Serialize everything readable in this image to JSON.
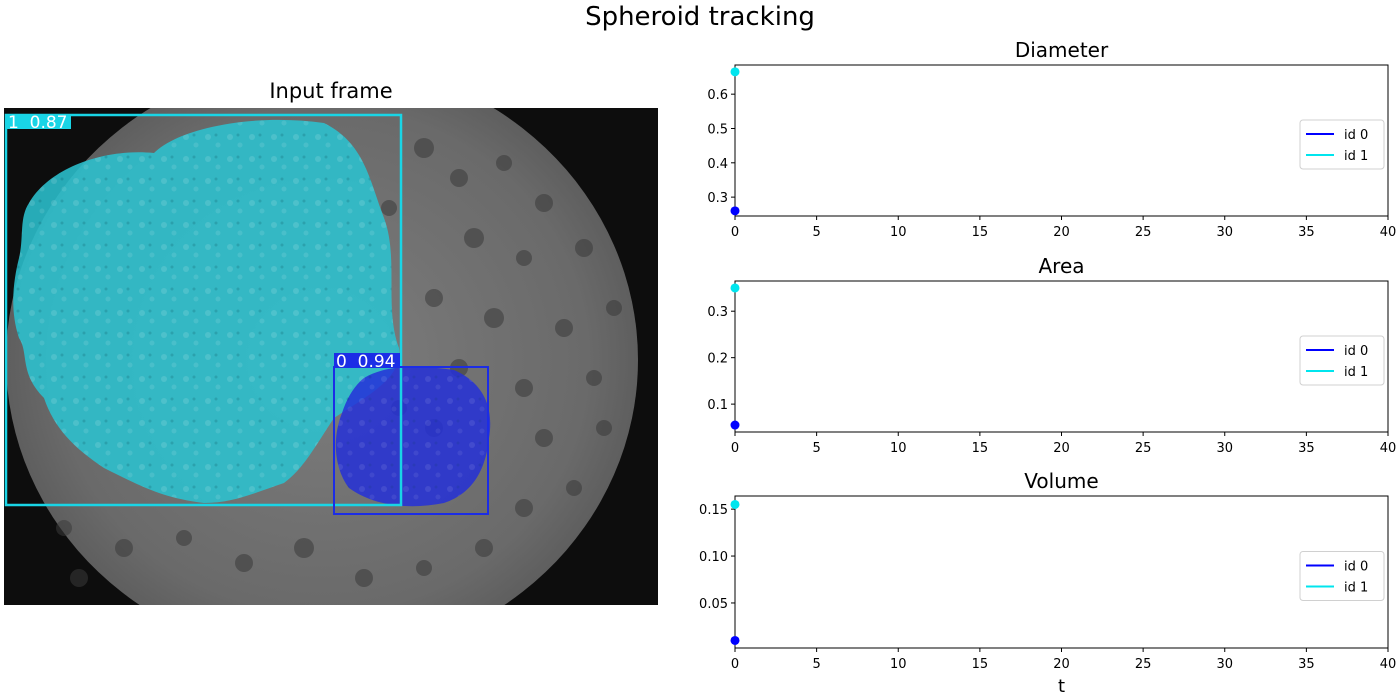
{
  "figure": {
    "title": "Spheroid tracking",
    "frame_title": "Input frame",
    "detections": [
      {
        "id": "1",
        "score": "0.87",
        "label": "1  0.87",
        "color": "#19d5e6"
      },
      {
        "id": "0",
        "score": "0.94",
        "label": "0  0.94",
        "color": "#1c2de6"
      }
    ]
  },
  "colors": {
    "id0": "#0000ff",
    "id1": "#00e5ee",
    "mask1": "#2bc2cf",
    "mask0": "#2430d8"
  },
  "chart_data": [
    {
      "type": "line",
      "title": "Diameter",
      "xlabel": "",
      "ylabel": "",
      "xlim": [
        0,
        40
      ],
      "ylim": [
        0.245,
        0.685
      ],
      "xticks": [
        0,
        5,
        10,
        15,
        20,
        25,
        30,
        35,
        40
      ],
      "yticks": [
        0.3,
        0.4,
        0.5,
        0.6
      ],
      "ytick_labels": [
        "0.3",
        "0.4",
        "0.5",
        "0.6"
      ],
      "legend": "center-right",
      "series": [
        {
          "name": "id 0",
          "x": [
            0
          ],
          "y": [
            0.26
          ],
          "color": "#0000ff"
        },
        {
          "name": "id 1",
          "x": [
            0
          ],
          "y": [
            0.665
          ],
          "color": "#00e5ee"
        }
      ]
    },
    {
      "type": "line",
      "title": "Area",
      "xlabel": "",
      "ylabel": "",
      "xlim": [
        0,
        40
      ],
      "ylim": [
        0.04,
        0.365
      ],
      "xticks": [
        0,
        5,
        10,
        15,
        20,
        25,
        30,
        35,
        40
      ],
      "yticks": [
        0.1,
        0.2,
        0.3
      ],
      "ytick_labels": [
        "0.1",
        "0.2",
        "0.3"
      ],
      "legend": "center-right",
      "series": [
        {
          "name": "id 0",
          "x": [
            0
          ],
          "y": [
            0.055
          ],
          "color": "#0000ff"
        },
        {
          "name": "id 1",
          "x": [
            0
          ],
          "y": [
            0.35
          ],
          "color": "#00e5ee"
        }
      ]
    },
    {
      "type": "line",
      "title": "Volume",
      "xlabel": "t",
      "ylabel": "",
      "xlim": [
        0,
        40
      ],
      "ylim": [
        0.002,
        0.164
      ],
      "xticks": [
        0,
        5,
        10,
        15,
        20,
        25,
        30,
        35,
        40
      ],
      "yticks": [
        0.05,
        0.1,
        0.15
      ],
      "ytick_labels": [
        "0.05",
        "0.10",
        "0.15"
      ],
      "legend": "center-right",
      "series": [
        {
          "name": "id 0",
          "x": [
            0
          ],
          "y": [
            0.01
          ],
          "color": "#0000ff"
        },
        {
          "name": "id 1",
          "x": [
            0
          ],
          "y": [
            0.155
          ],
          "color": "#00e5ee"
        }
      ]
    }
  ]
}
